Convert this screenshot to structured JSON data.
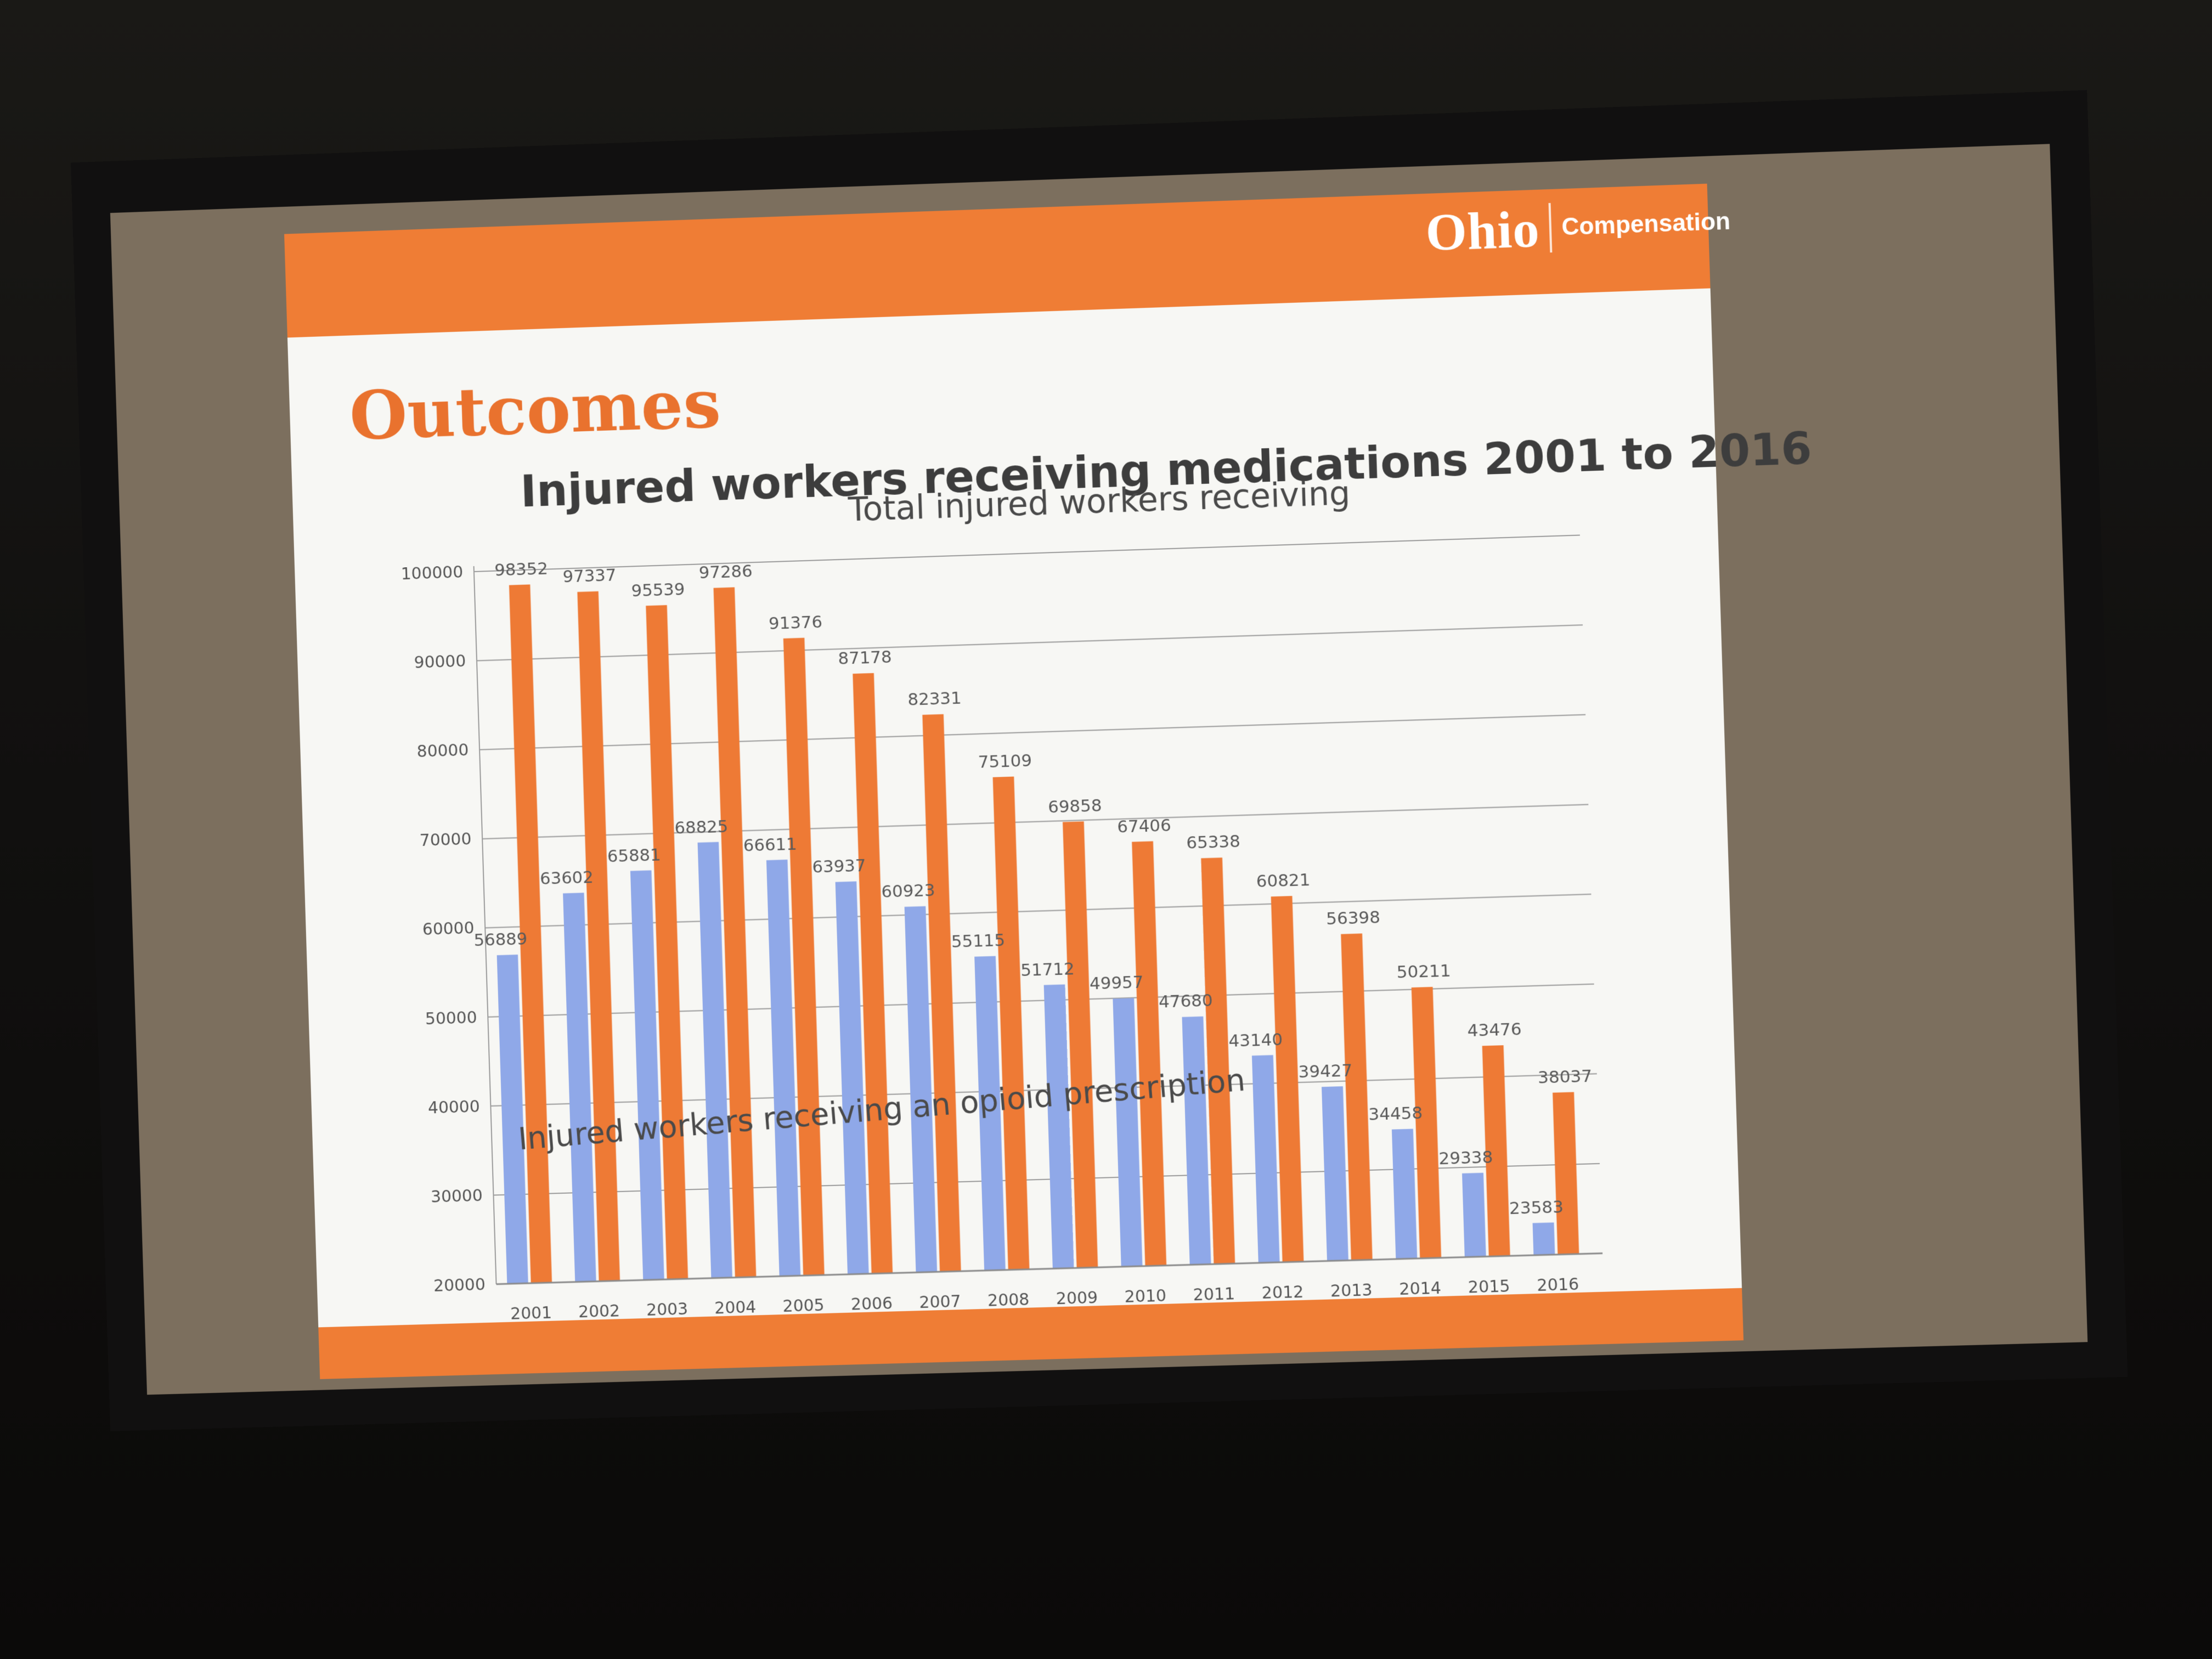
{
  "slide": {
    "title": "Outcomes",
    "logo_text": "Ohio",
    "logo_subtext": "Compensation"
  },
  "colors": {
    "accent": "#ef7d35",
    "total_series": "#ee7a35",
    "opioid_series": "#8fa8e8",
    "background": "#f7f7f4",
    "title": "#e9722e"
  },
  "chart_data": {
    "type": "bar",
    "title": "Injured workers receiving medications 2001 to 2016",
    "xlabel": "",
    "ylabel": "",
    "ylim": [
      20000,
      100000
    ],
    "yticks": [
      20000,
      30000,
      40000,
      50000,
      60000,
      70000,
      80000,
      90000,
      100000
    ],
    "categories": [
      "2001",
      "2002",
      "2003",
      "2004",
      "2005",
      "2006",
      "2007",
      "2008",
      "2009",
      "2010",
      "2011",
      "2012",
      "2013",
      "2014",
      "2015",
      "2016"
    ],
    "series": [
      {
        "name": "Injured workers receiving an opioid prescription",
        "color": "#8fa8e8",
        "values": [
          56889,
          63602,
          65881,
          68825,
          66611,
          63937,
          60923,
          55115,
          51712,
          49957,
          47680,
          43140,
          39427,
          34458,
          29338,
          23583
        ]
      },
      {
        "name": "Total injured workers receiving",
        "color": "#ee7a35",
        "values": [
          98352,
          97337,
          95539,
          97286,
          91376,
          87178,
          82331,
          75109,
          69858,
          67406,
          65338,
          60821,
          56398,
          50211,
          43476,
          38037
        ]
      }
    ],
    "grid": true,
    "legend": "inline annotations"
  }
}
